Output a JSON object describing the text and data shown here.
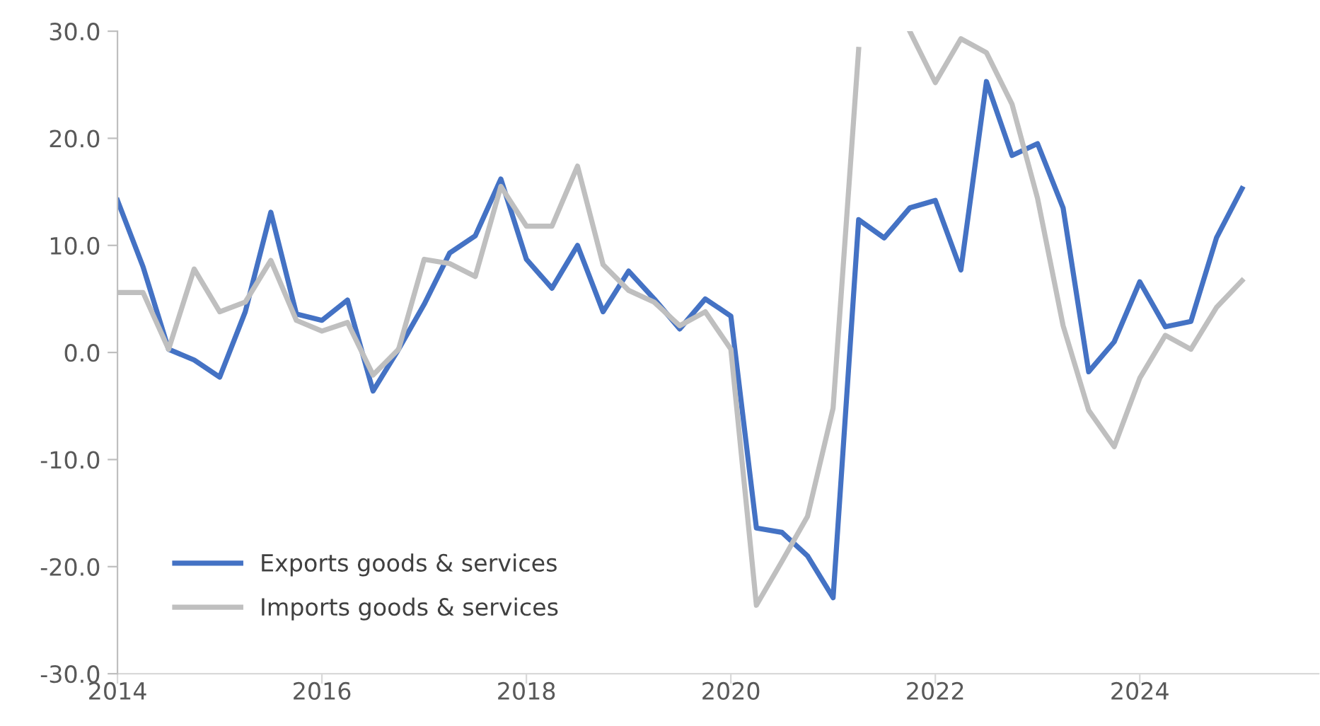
{
  "chart_data": {
    "type": "line",
    "x": [
      2014,
      2014.25,
      2014.5,
      2014.75,
      2015,
      2015.25,
      2015.5,
      2015.75,
      2016,
      2016.25,
      2016.5,
      2016.75,
      2017,
      2017.25,
      2017.5,
      2017.75,
      2018,
      2018.25,
      2018.5,
      2018.75,
      2019,
      2019.25,
      2019.5,
      2019.75,
      2020,
      2020.25,
      2020.5,
      2020.75,
      2021,
      2021.25,
      2021.5,
      2021.75,
      2022,
      2022.25,
      2022.5,
      2022.75,
      2023,
      2023.25,
      2023.5,
      2023.75,
      2024,
      2024.25,
      2024.5,
      2024.75,
      2025
    ],
    "series": [
      {
        "name": "Exports goods & services",
        "color": "#4472c4",
        "values": [
          14.2,
          8.0,
          0.3,
          -0.7,
          -2.3,
          3.8,
          13.1,
          3.6,
          3.0,
          4.9,
          -3.6,
          0.3,
          4.5,
          9.3,
          10.9,
          16.2,
          8.7,
          6.0,
          10.0,
          3.8,
          7.6,
          5.0,
          2.2,
          5.0,
          3.4,
          -16.4,
          -16.8,
          -19.0,
          -22.9,
          12.4,
          10.7,
          13.5,
          14.2,
          7.7,
          25.3,
          18.4,
          19.5,
          13.5,
          -1.8,
          1.0,
          6.6,
          2.4,
          2.9,
          10.7,
          15.3
        ]
      },
      {
        "name": "Imports goods & services",
        "color": "#bfbfbf",
        "values": [
          5.6,
          5.6,
          0.3,
          7.8,
          3.8,
          4.7,
          8.6,
          3.0,
          2.0,
          2.8,
          -2.1,
          0.3,
          8.7,
          8.3,
          7.1,
          15.5,
          11.8,
          11.8,
          17.4,
          8.2,
          5.8,
          4.7,
          2.5,
          3.8,
          0.3,
          -23.6,
          -19.5,
          -15.3,
          -5.2,
          28.3,
          null,
          30.0,
          25.2,
          29.3,
          28.0,
          23.2,
          14.4,
          2.5,
          -5.4,
          -8.8,
          -2.4,
          1.6,
          0.3,
          4.2,
          6.7
        ]
      }
    ],
    "xlim": [
      2014,
      2025.75
    ],
    "xticks": [
      2014,
      2016,
      2018,
      2020,
      2022,
      2024
    ],
    "ylim": [
      -30,
      30
    ],
    "yticks": [
      {
        "value": -30,
        "label": "-30.0"
      },
      {
        "value": -20,
        "label": "-20.0"
      },
      {
        "value": -10,
        "label": "-10.0"
      },
      {
        "value": 0,
        "label": "0.0"
      },
      {
        "value": 10,
        "label": "10.0"
      },
      {
        "value": 20,
        "label": "20.0"
      },
      {
        "value": 30,
        "label": "30.0"
      }
    ],
    "legend": "bottom left",
    "line_style": "solid",
    "marker": "none",
    "grid": false
  }
}
